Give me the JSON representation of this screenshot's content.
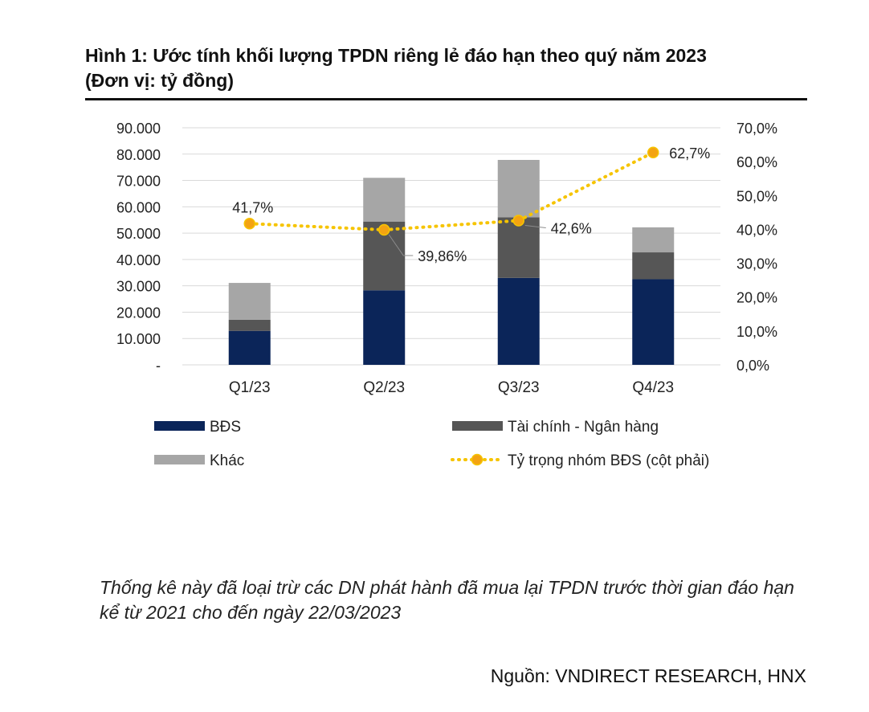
{
  "title_line1": "Hình 1: Ước tính khối lượng TPDN riêng lẻ đáo hạn theo quý năm 2023",
  "title_line2": "(Đơn vị: tỷ đồng)",
  "note": "Thống kê này đã loại trừ các DN phát hành đã mua lại TPDN trước thời gian đáo hạn kể từ 2021 cho đến ngày 22/03/2023",
  "source": "Nguồn: VNDIRECT RESEARCH, HNX",
  "colors": {
    "bds": "#0b2559",
    "taichinh": "#565656",
    "khac": "#a6a6a6",
    "line": "#f6c400",
    "marker": "#f3a312",
    "grid": "#d9d9d9"
  },
  "chart_data": {
    "type": "bar",
    "stacked": true,
    "categories": [
      "Q1/23",
      "Q2/23",
      "Q3/23",
      "Q4/23"
    ],
    "series": [
      {
        "name": "BĐS",
        "values": [
          12900,
          28300,
          33000,
          32500
        ]
      },
      {
        "name": "Tài chính - Ngân hàng",
        "values": [
          4200,
          26100,
          23000,
          10200
        ]
      },
      {
        "name": "Khác",
        "values": [
          14000,
          16600,
          21800,
          9500
        ]
      }
    ],
    "line_series": {
      "name": "Tỷ trọng nhóm BĐS (cột phải)",
      "values": [
        41.7,
        39.86,
        42.6,
        62.7
      ],
      "labels": [
        "41,7%",
        "39,86%",
        "42,6%",
        "62,7%"
      ]
    },
    "y_left": {
      "ylim": [
        0,
        90000
      ],
      "ticks": [
        0,
        10000,
        20000,
        30000,
        40000,
        50000,
        60000,
        70000,
        80000,
        90000
      ],
      "tick_labels": [
        "-",
        "10.000",
        "20.000",
        "30.000",
        "40.000",
        "50.000",
        "60.000",
        "70.000",
        "80.000",
        "90.000"
      ]
    },
    "y_right": {
      "ylim": [
        0,
        70
      ],
      "ticks": [
        0,
        10,
        20,
        30,
        40,
        50,
        60,
        70
      ],
      "tick_labels": [
        "0,0%",
        "10,0%",
        "20,0%",
        "30,0%",
        "40,0%",
        "50,0%",
        "60,0%",
        "70,0%"
      ]
    },
    "grid": true,
    "legend": [
      {
        "label": "BĐS",
        "kind": "bar",
        "series": 0
      },
      {
        "label": "Tài chính - Ngân hàng",
        "kind": "bar",
        "series": 1
      },
      {
        "label": "Khác",
        "kind": "bar",
        "series": 2
      },
      {
        "label": "Tỷ trọng nhóm BĐS (cột phải)",
        "kind": "line"
      }
    ],
    "legend_position": "bottom"
  }
}
